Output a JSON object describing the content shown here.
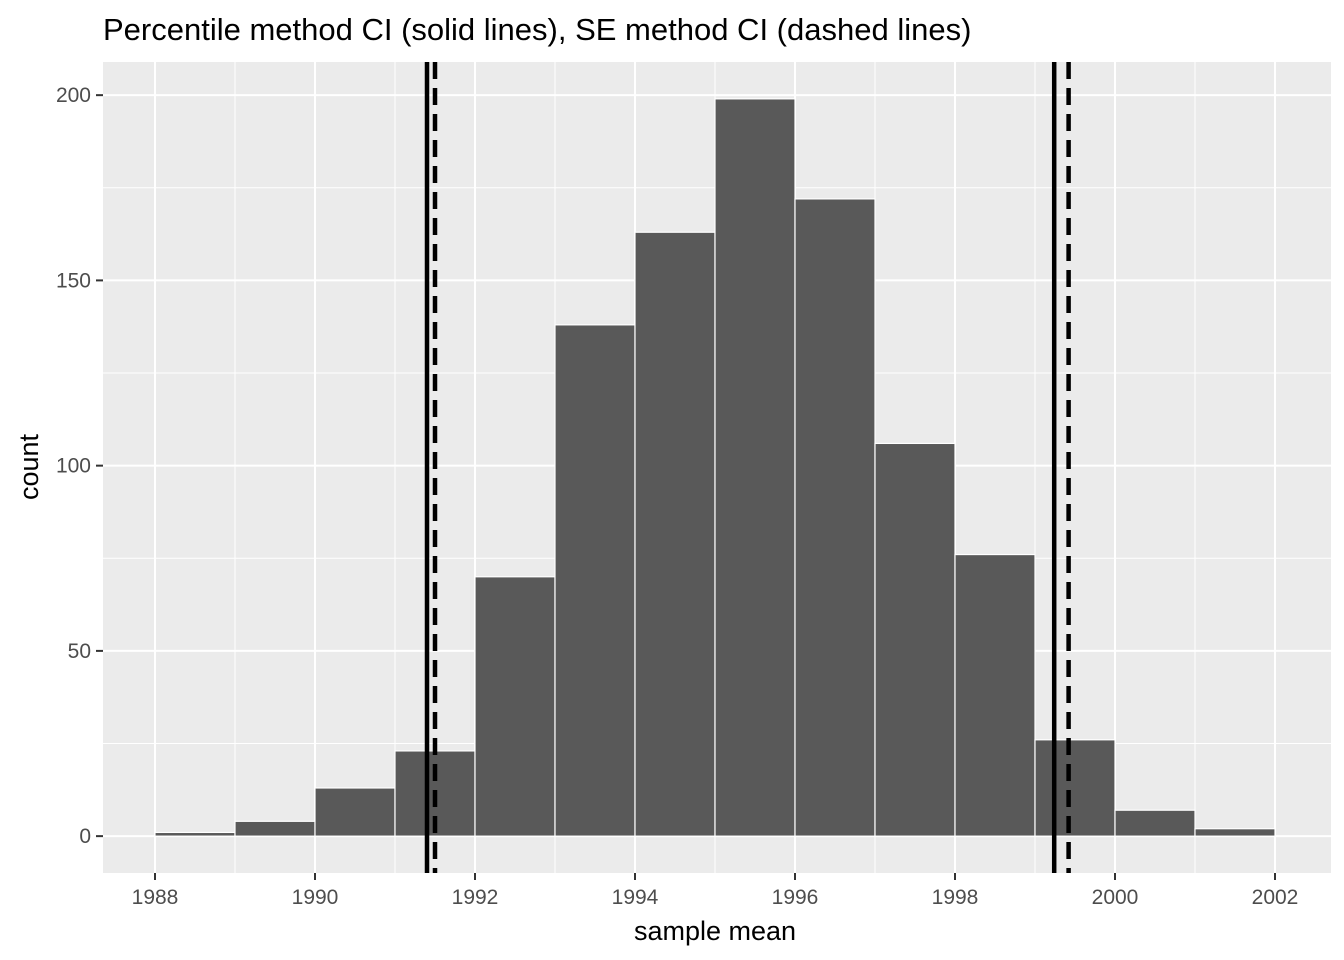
{
  "chart_data": {
    "type": "bar",
    "subtype": "histogram",
    "title": "Percentile method CI (solid lines), SE method CI (dashed lines)",
    "xlabel": "sample mean",
    "ylabel": "count",
    "xlim": [
      1987.35,
      2002.7
    ],
    "ylim": [
      -9.95,
      208.95
    ],
    "x_ticks": [
      1988,
      1990,
      1992,
      1994,
      1996,
      1998,
      2000,
      2002
    ],
    "x_tick_labels": [
      "1988",
      "1990",
      "1992",
      "1994",
      "1996",
      "1998",
      "2000",
      "2002"
    ],
    "y_ticks": [
      0,
      50,
      100,
      150,
      200
    ],
    "y_tick_labels": [
      "0",
      "50",
      "100",
      "150",
      "200"
    ],
    "bins": [
      {
        "x0": 1988,
        "x1": 1989,
        "count": 1
      },
      {
        "x0": 1989,
        "x1": 1990,
        "count": 4
      },
      {
        "x0": 1990,
        "x1": 1991,
        "count": 13
      },
      {
        "x0": 1991,
        "x1": 1992,
        "count": 23
      },
      {
        "x0": 1992,
        "x1": 1993,
        "count": 70
      },
      {
        "x0": 1993,
        "x1": 1994,
        "count": 138
      },
      {
        "x0": 1994,
        "x1": 1995,
        "count": 163
      },
      {
        "x0": 1995,
        "x1": 1996,
        "count": 199
      },
      {
        "x0": 1996,
        "x1": 1997,
        "count": 172
      },
      {
        "x0": 1997,
        "x1": 1998,
        "count": 106
      },
      {
        "x0": 1998,
        "x1": 1999,
        "count": 76
      },
      {
        "x0": 1999,
        "x1": 2000,
        "count": 26
      },
      {
        "x0": 2000,
        "x1": 2001,
        "count": 7
      },
      {
        "x0": 2001,
        "x1": 2002,
        "count": 2
      }
    ],
    "vlines": [
      {
        "x": 1991.4,
        "style": "solid"
      },
      {
        "x": 1999.24,
        "style": "solid"
      },
      {
        "x": 1991.5,
        "style": "dashed"
      },
      {
        "x": 1999.42,
        "style": "dashed"
      }
    ],
    "grid": true,
    "legend": "none",
    "colors": {
      "panel": "#ebebeb",
      "grid": "#ffffff",
      "bar_fill": "#595959",
      "bar_outline": "#ffffff",
      "ci_line": "#000000",
      "tick_text": "#4d4d4d"
    }
  }
}
